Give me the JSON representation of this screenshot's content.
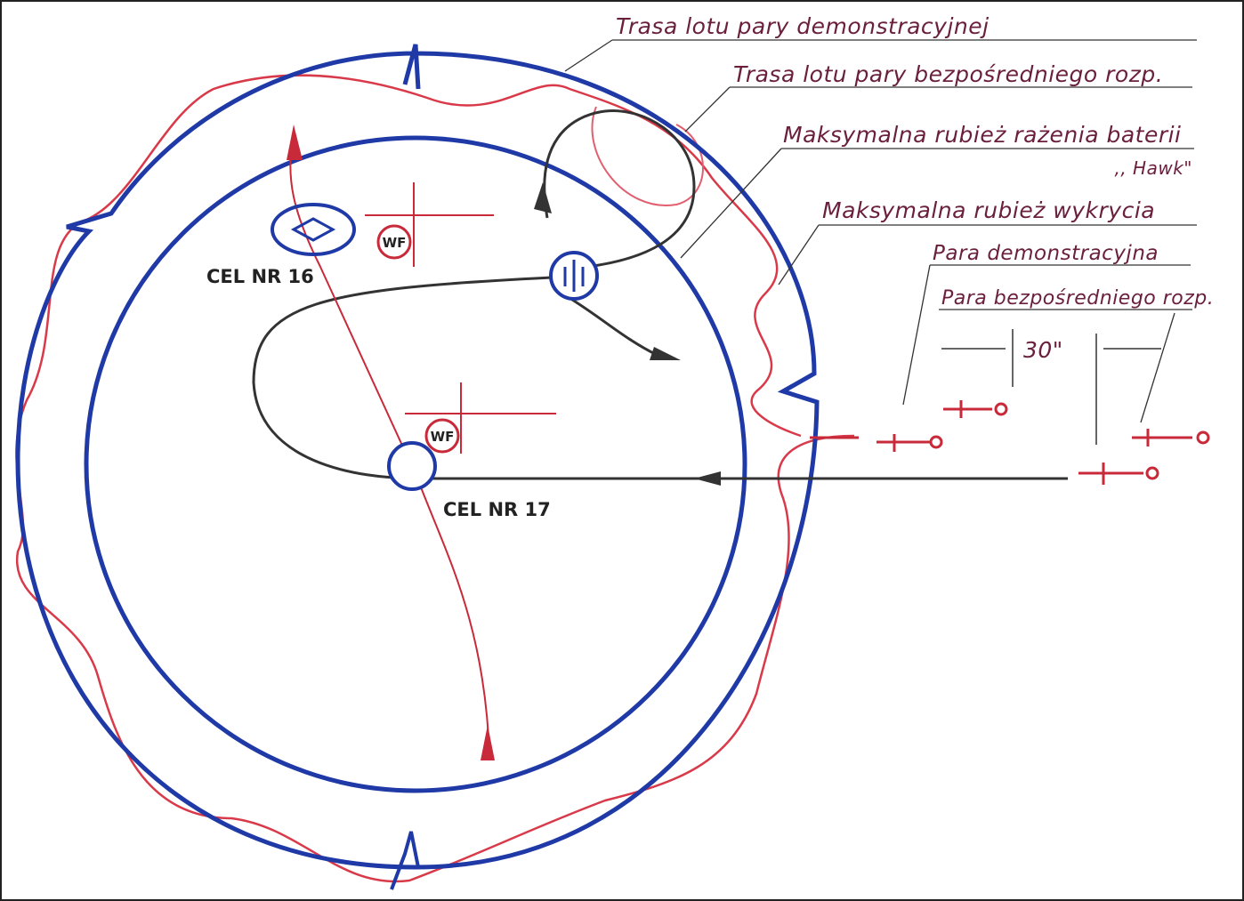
{
  "labels": {
    "demo_route": "Trasa lotu pary demonstracyjnej",
    "direct_route": "Trasa lotu pary bezpośredniego rozp.",
    "hawk_range": "Maksymalna rubież rażenia baterii",
    "hawk_name": ",, Hawk\"",
    "detection_range": "Maksymalna rubież wykrycia",
    "demo_pair": "Para demonstracyjna",
    "direct_pair": "Para bezpośredniego rozp.",
    "interval": "30\""
  },
  "targets": [
    {
      "label": "CEL NR 16",
      "marker": "WF"
    },
    {
      "label": "CEL NR 17",
      "marker": "WF"
    }
  ]
}
